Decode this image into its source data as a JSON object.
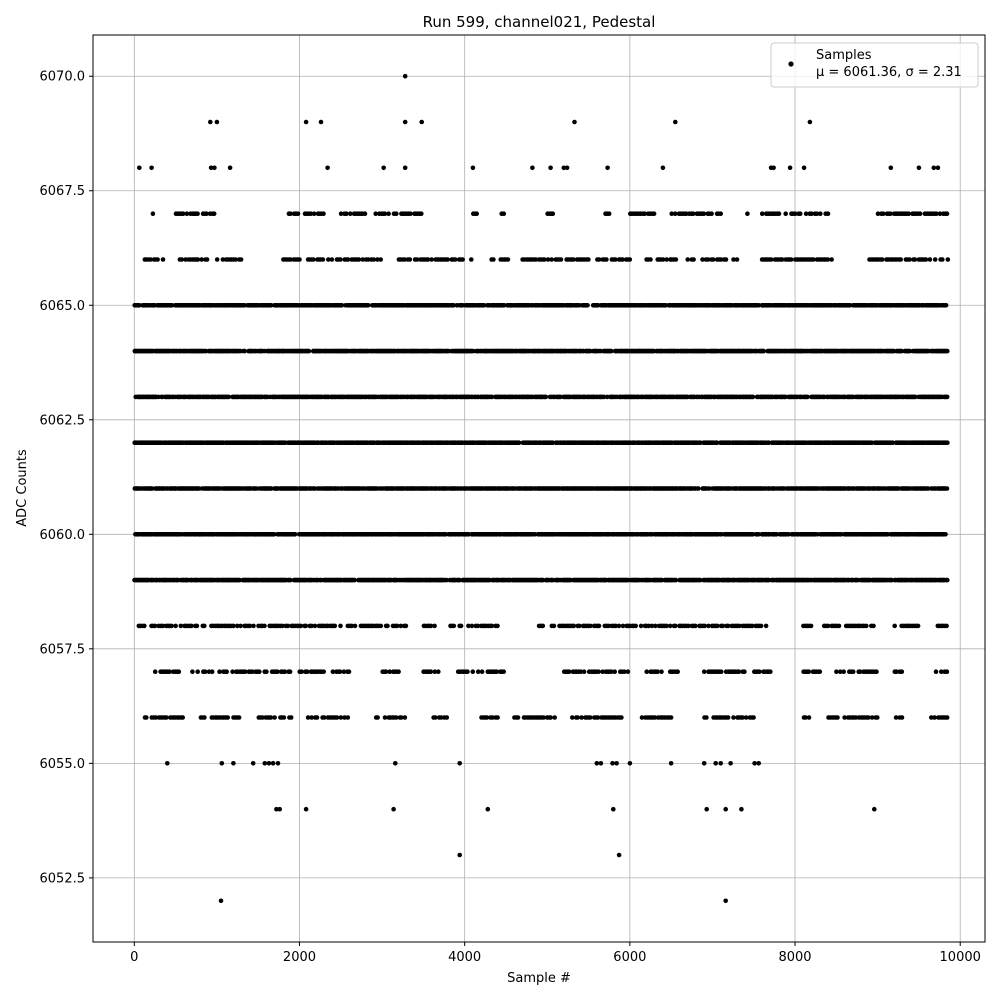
{
  "chart_data": {
    "type": "scatter",
    "title": "Run 599, channel021, Pedestal",
    "xlabel": "Sample #",
    "ylabel": "ADC Counts",
    "xlim": [
      -500,
      10300
    ],
    "ylim": [
      6051.1,
      6070.9
    ],
    "x_ticks": [
      0,
      2000,
      4000,
      6000,
      8000,
      10000
    ],
    "y_ticks": [
      6052.5,
      6055.0,
      6057.5,
      6060.0,
      6062.5,
      6065.0,
      6067.5,
      6070.0
    ],
    "x_tick_labels": [
      "0",
      "2000",
      "4000",
      "6000",
      "8000",
      "10000"
    ],
    "y_tick_labels": [
      "6052.5",
      "6055.0",
      "6057.5",
      "6060.0",
      "6062.5",
      "6065.0",
      "6067.5",
      "6070.0"
    ],
    "grid": true,
    "legend_position": "top-right",
    "series": [
      {
        "name": "Samples",
        "color": "#000000",
        "n_samples": 9850,
        "dense_levels": [
          6059,
          6060,
          6061,
          6062,
          6063,
          6064,
          6065
        ],
        "level_ranges": [
          {
            "y": 6058,
            "ranges": [
              [
                30,
                3300
              ],
              [
                3500,
                3650
              ],
              [
                3800,
                4400
              ],
              [
                4900,
                7650
              ],
              [
                8100,
                8200
              ],
              [
                8350,
                8950
              ],
              [
                9200,
                9500
              ],
              [
                9700,
                9850
              ]
            ]
          },
          {
            "y": 6057,
            "ranges": [
              [
                250,
                550
              ],
              [
                700,
                1400
              ],
              [
                1400,
                1900
              ],
              [
                2000,
                2300
              ],
              [
                2400,
                2600
              ],
              [
                3000,
                3200
              ],
              [
                3500,
                3700
              ],
              [
                3900,
                4500
              ],
              [
                5200,
                6000
              ],
              [
                6200,
                6600
              ],
              [
                6900,
                7400
              ],
              [
                7500,
                7700
              ],
              [
                8100,
                8300
              ],
              [
                8500,
                9000
              ],
              [
                9200,
                9300
              ],
              [
                9700,
                9850
              ]
            ]
          },
          {
            "y": 6056,
            "ranges": [
              [
                100,
                600
              ],
              [
                800,
                1300
              ],
              [
                1500,
                1900
              ],
              [
                2100,
                2600
              ],
              [
                2900,
                3300
              ],
              [
                3600,
                3800
              ],
              [
                4200,
                4400
              ],
              [
                4600,
                5100
              ],
              [
                5300,
                5900
              ],
              [
                6100,
                6500
              ],
              [
                6900,
                7500
              ],
              [
                8100,
                8200
              ],
              [
                8400,
                9000
              ],
              [
                9200,
                9300
              ],
              [
                9600,
                9850
              ]
            ]
          },
          {
            "y": 6066,
            "ranges": [
              [
                100,
                350
              ],
              [
                550,
                900
              ],
              [
                1000,
                1300
              ],
              [
                1800,
                2000
              ],
              [
                2100,
                3000
              ],
              [
                3200,
                4100
              ],
              [
                4300,
                4600
              ],
              [
                4700,
                5500
              ],
              [
                5600,
                6000
              ],
              [
                6200,
                6600
              ],
              [
                6700,
                7300
              ],
              [
                7600,
                8500
              ],
              [
                8900,
                9850
              ]
            ]
          },
          {
            "y": 6067,
            "ranges": [
              [
                200,
                250
              ],
              [
                500,
                1000
              ],
              [
                1800,
                2300
              ],
              [
                2500,
                2800
              ],
              [
                2900,
                3500
              ],
              [
                4100,
                4150
              ],
              [
                4400,
                4500
              ],
              [
                5000,
                5100
              ],
              [
                5700,
                5750
              ],
              [
                6000,
                6300
              ],
              [
                6500,
                7100
              ],
              [
                7400,
                7450
              ],
              [
                7600,
                8400
              ],
              [
                9000,
                9850
              ]
            ]
          }
        ],
        "sparse_points": [
          {
            "x": 60,
            "y": 6068
          },
          {
            "x": 210,
            "y": 6068
          },
          {
            "x": 930,
            "y": 6068
          },
          {
            "x": 970,
            "y": 6068
          },
          {
            "x": 1160,
            "y": 6068
          },
          {
            "x": 2340,
            "y": 6068
          },
          {
            "x": 3020,
            "y": 6068
          },
          {
            "x": 3280,
            "y": 6068
          },
          {
            "x": 4100,
            "y": 6068
          },
          {
            "x": 4820,
            "y": 6068
          },
          {
            "x": 5040,
            "y": 6068
          },
          {
            "x": 5200,
            "y": 6068
          },
          {
            "x": 5240,
            "y": 6068
          },
          {
            "x": 5730,
            "y": 6068
          },
          {
            "x": 6400,
            "y": 6068
          },
          {
            "x": 7710,
            "y": 6068
          },
          {
            "x": 7740,
            "y": 6068
          },
          {
            "x": 7940,
            "y": 6068
          },
          {
            "x": 8110,
            "y": 6068
          },
          {
            "x": 9160,
            "y": 6068
          },
          {
            "x": 9500,
            "y": 6068
          },
          {
            "x": 9680,
            "y": 6068
          },
          {
            "x": 9730,
            "y": 6068
          },
          {
            "x": 920,
            "y": 6069
          },
          {
            "x": 1000,
            "y": 6069
          },
          {
            "x": 2080,
            "y": 6069
          },
          {
            "x": 2260,
            "y": 6069
          },
          {
            "x": 3280,
            "y": 6069
          },
          {
            "x": 3480,
            "y": 6069
          },
          {
            "x": 5330,
            "y": 6069
          },
          {
            "x": 6550,
            "y": 6069
          },
          {
            "x": 8180,
            "y": 6069
          },
          {
            "x": 3280,
            "y": 6070
          },
          {
            "x": 400,
            "y": 6055
          },
          {
            "x": 1060,
            "y": 6055
          },
          {
            "x": 1200,
            "y": 6055
          },
          {
            "x": 1440,
            "y": 6055
          },
          {
            "x": 1580,
            "y": 6055
          },
          {
            "x": 1630,
            "y": 6055
          },
          {
            "x": 1680,
            "y": 6055
          },
          {
            "x": 1740,
            "y": 6055
          },
          {
            "x": 3160,
            "y": 6055
          },
          {
            "x": 3940,
            "y": 6055
          },
          {
            "x": 5600,
            "y": 6055
          },
          {
            "x": 5650,
            "y": 6055
          },
          {
            "x": 5790,
            "y": 6055
          },
          {
            "x": 5840,
            "y": 6055
          },
          {
            "x": 6000,
            "y": 6055
          },
          {
            "x": 6500,
            "y": 6055
          },
          {
            "x": 6900,
            "y": 6055
          },
          {
            "x": 7040,
            "y": 6055
          },
          {
            "x": 7100,
            "y": 6055
          },
          {
            "x": 7220,
            "y": 6055
          },
          {
            "x": 7510,
            "y": 6055
          },
          {
            "x": 7560,
            "y": 6055
          },
          {
            "x": 1720,
            "y": 6054
          },
          {
            "x": 1760,
            "y": 6054
          },
          {
            "x": 2080,
            "y": 6054
          },
          {
            "x": 3140,
            "y": 6054
          },
          {
            "x": 4280,
            "y": 6054
          },
          {
            "x": 5800,
            "y": 6054
          },
          {
            "x": 6930,
            "y": 6054
          },
          {
            "x": 7160,
            "y": 6054
          },
          {
            "x": 7350,
            "y": 6054
          },
          {
            "x": 8960,
            "y": 6054
          },
          {
            "x": 3940,
            "y": 6053
          },
          {
            "x": 5870,
            "y": 6053
          },
          {
            "x": 1050,
            "y": 6052
          },
          {
            "x": 7160,
            "y": 6052
          }
        ]
      }
    ],
    "legend_label": "Samples",
    "legend_stats": "μ = 6061.36, σ = 2.31"
  }
}
